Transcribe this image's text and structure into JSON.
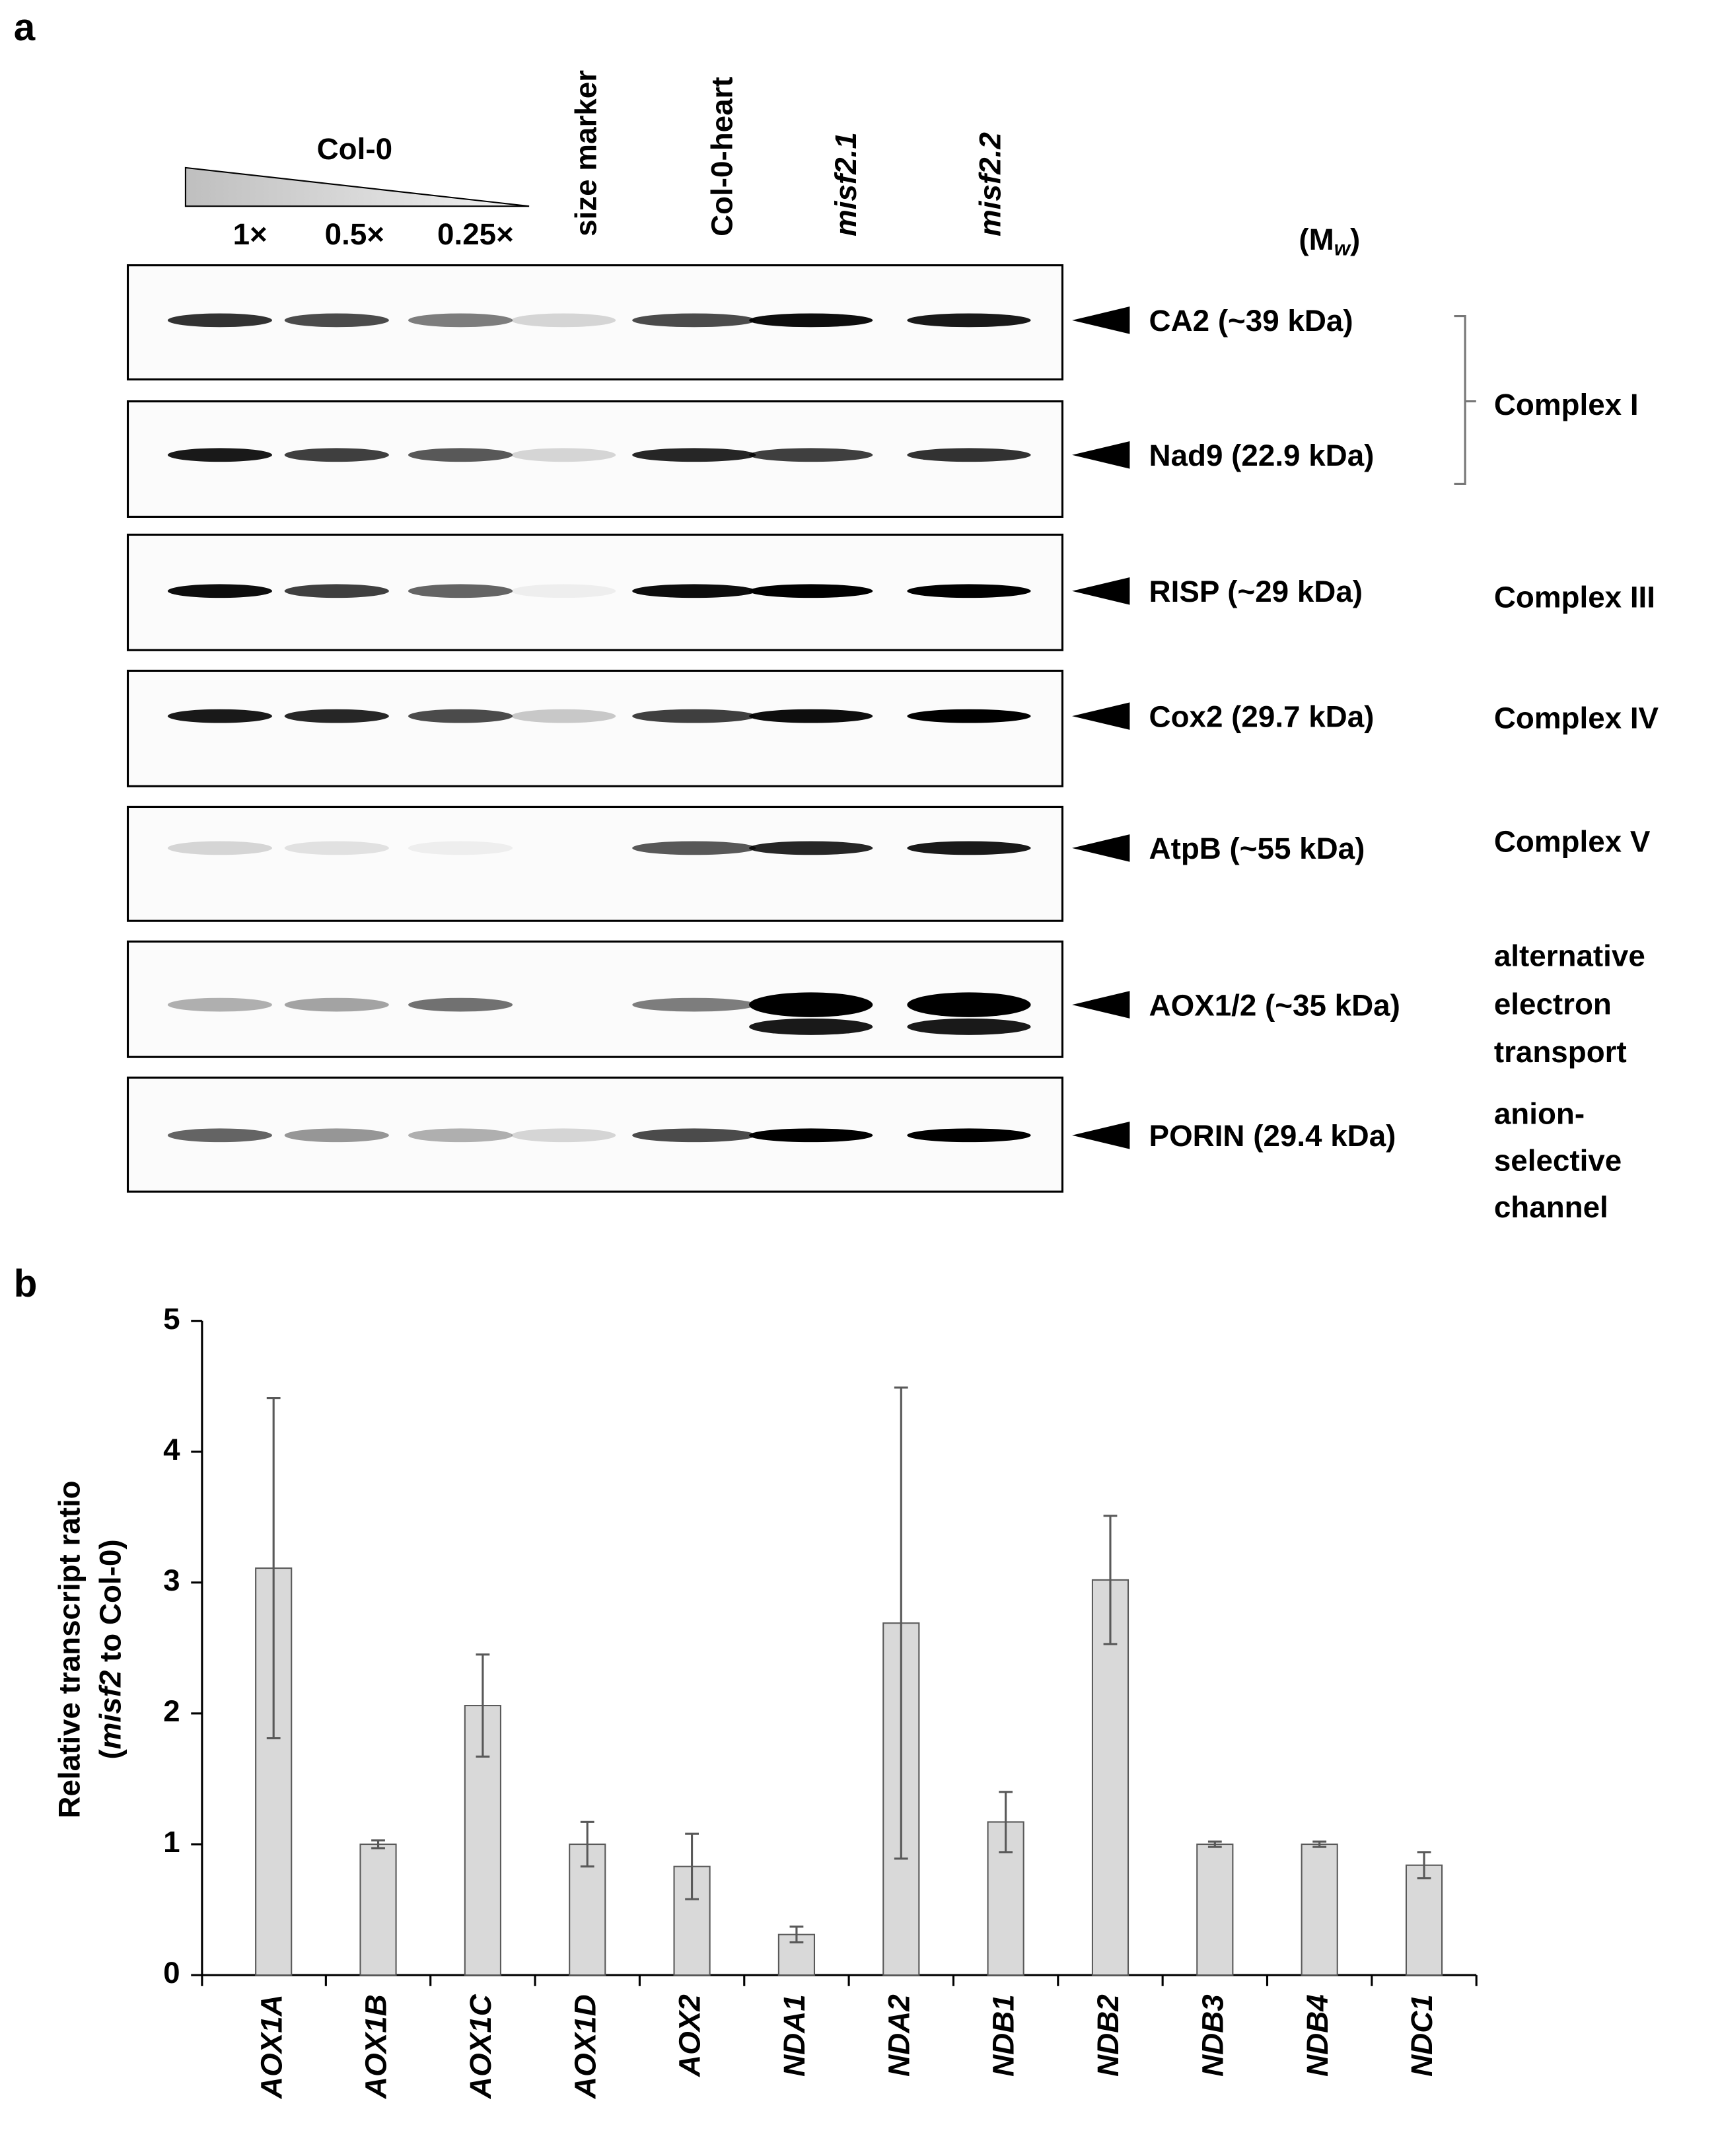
{
  "panel_labels": [
    "a",
    "b"
  ],
  "blot": {
    "sample_group": "Col-0",
    "dilutions": [
      "1×",
      "0.5×",
      "0.25×"
    ],
    "lanes": [
      "size marker",
      "Col-0-heart",
      "misf2.1",
      "misf2.2"
    ],
    "mw_header": {
      "open": "(M",
      "subscript": "w",
      "close": ")"
    },
    "proteins": [
      "CA2 (~39 kDa)",
      "Nad9 (22.9 kDa)",
      "RISP (~29 kDa)",
      "Cox2 (29.7 kDa)",
      "AtpB (~55 kDa)",
      "AOX1/2 (~35 kDa)",
      "PORIN (29.4 kDa)"
    ],
    "complexes": [
      [
        "Complex I"
      ],
      [
        "Complex III"
      ],
      [
        "Complex IV"
      ],
      [
        "Complex V"
      ],
      [
        "alternative",
        "electron",
        "transport"
      ],
      [
        "anion-",
        "selective",
        "channel"
      ]
    ]
  },
  "chart_data": {
    "type": "bar",
    "y_label": {
      "line1": "Relative transcript ratio",
      "line2": [
        "(",
        "misf2",
        " to Col-0)"
      ]
    },
    "categories": [
      "AOX1A",
      "AOX1B",
      "AOX1C",
      "AOX1D",
      "AOX2",
      "NDA1",
      "NDA2",
      "NDB1",
      "NDB2",
      "NDB3",
      "NDB4",
      "NDC1"
    ],
    "values": [
      3.11,
      1.0,
      2.06,
      1.0,
      0.83,
      0.31,
      2.69,
      1.17,
      3.02,
      1.0,
      1.0,
      0.84
    ],
    "errors": [
      1.3,
      0.03,
      0.39,
      0.17,
      0.25,
      0.06,
      1.8,
      0.23,
      0.49,
      0.02,
      0.02,
      0.1
    ],
    "color": "#d9d9d9",
    "ylim": [
      0,
      5
    ],
    "yticks": [
      0,
      1,
      2,
      3,
      4,
      5
    ]
  }
}
